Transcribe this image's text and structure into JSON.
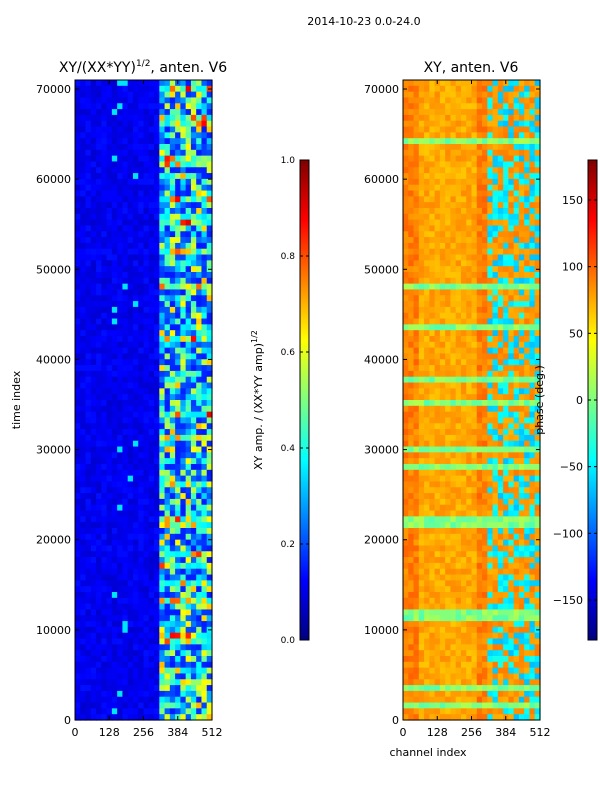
{
  "suptitle": "2014-10-23 0.0-24.0",
  "xlabel": "channel index",
  "chart_data": [
    {
      "type": "heatmap",
      "title_prefix": "XY/(XX*YY)",
      "title_sup": "1/2",
      "title_suffix": ", anten. V6",
      "ylabel": "time index",
      "xticks": [
        0,
        128,
        256,
        384,
        512
      ],
      "yticks": [
        0,
        10000,
        20000,
        30000,
        40000,
        50000,
        60000,
        70000
      ],
      "xlim": [
        0,
        512
      ],
      "ylim": [
        0,
        71000
      ],
      "colormap": "jet",
      "colorbar": {
        "label_prefix": "XY amp. / (XX*YY amp)",
        "label_sup": "1/2",
        "ticks": [
          "0.0",
          "0.2",
          "0.4",
          "0.6",
          "0.8",
          "1.0"
        ],
        "range": [
          0.0,
          1.0
        ]
      }
    },
    {
      "type": "heatmap",
      "title": "XY, anten. V6",
      "xticks": [
        0,
        128,
        256,
        384,
        512
      ],
      "yticks": [
        0,
        10000,
        20000,
        30000,
        40000,
        50000,
        60000,
        70000
      ],
      "xlim": [
        0,
        512
      ],
      "ylim": [
        0,
        71000
      ],
      "colormap": "jet",
      "colorbar": {
        "label": "phase (deg.)",
        "ticks": [
          "−150",
          "−100",
          "−50",
          "0",
          "50",
          "100",
          "150"
        ],
        "tick_values": [
          -150,
          -100,
          -50,
          0,
          50,
          100,
          150
        ],
        "range": [
          -180,
          180
        ]
      }
    }
  ],
  "colors": {
    "jet": [
      "#00007f",
      "#0000ff",
      "#007fff",
      "#00ffff",
      "#7fff7f",
      "#ffff00",
      "#ff7f00",
      "#ff0000",
      "#7f0000"
    ]
  }
}
